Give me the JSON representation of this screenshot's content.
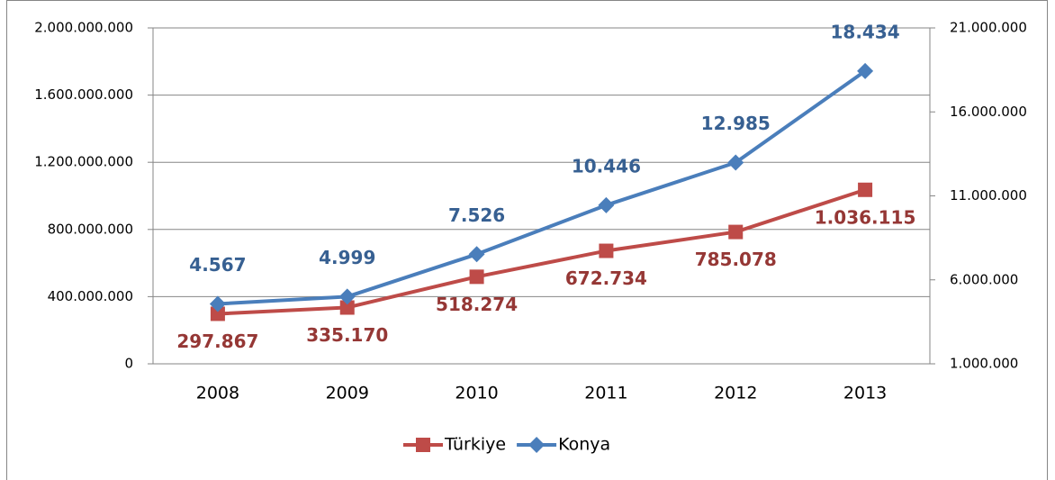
{
  "chart_data": {
    "type": "line",
    "categories": [
      "2008",
      "2009",
      "2010",
      "2011",
      "2012",
      "2013"
    ],
    "series": [
      {
        "name": "Türkiye",
        "color": "#be4b48",
        "label_color": "#953735",
        "marker": "square",
        "values": [
          297867000,
          335170000,
          518274000,
          672734000,
          785078000,
          1036115000
        ],
        "value_labels": [
          "297.867",
          "335.170",
          "518.274",
          "672.734",
          "785.078",
          "1.036.115"
        ]
      },
      {
        "name": "Konya",
        "color": "#4a7ebb",
        "label_color": "#376092",
        "marker": "diamond",
        "axis": "y2",
        "values": [
          4567000,
          4999000,
          7526000,
          10446000,
          12985000,
          18434000
        ],
        "value_labels": [
          "4.567",
          "4.999",
          "7.526",
          "10.446",
          "12.985",
          "18.434"
        ]
      }
    ],
    "ylim": [
      0,
      2000000000
    ],
    "yticks": [
      0,
      {
        "value": 400000000,
        "label": "400.000.000"
      },
      {
        "value": 800000000,
        "label": "800.000.000"
      },
      {
        "value": 1200000000,
        "label": "1.200.000.000"
      },
      {
        "value": 1600000000,
        "label": "1.600.000.000"
      },
      {
        "value": 2000000000,
        "label": "2.000.000.000"
      }
    ],
    "y2lim": [
      1000000,
      21000000
    ],
    "y2ticks": [
      {
        "value": 1000000,
        "label": "1.000.000"
      },
      {
        "value": 6000000,
        "label": "6.000.000"
      },
      {
        "value": 11000000,
        "label": "11.000.000"
      },
      {
        "value": 16000000,
        "label": "16.000.000"
      },
      {
        "value": 21000000,
        "label": "21.000.000"
      }
    ],
    "grid": true,
    "legend": "bottom"
  }
}
